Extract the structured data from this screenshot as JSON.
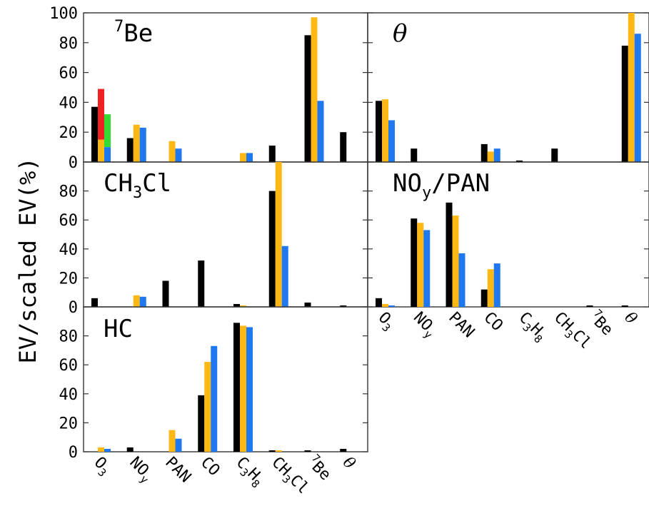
{
  "ylabel": "EV/scaled EV(%)",
  "colors": {
    "s1": "#000000",
    "s2": "#FDB813",
    "s3": "#1F78F0",
    "extra_red": "#EE2222",
    "extra_green": "#33DD33"
  },
  "categories": [
    {
      "text": "O",
      "sub": "3"
    },
    {
      "text": "NO",
      "sub": "y"
    },
    {
      "text": "PAN",
      "sub": ""
    },
    {
      "text": "CO",
      "sub": ""
    },
    {
      "text": "C",
      "sub": "3",
      "text2": "H",
      "sub2": "8"
    },
    {
      "text": "CH",
      "sub": "3",
      "text2": "Cl"
    },
    {
      "sup": "7",
      "text": "Be"
    },
    {
      "text": "θ",
      "serif": true
    }
  ],
  "chart_data": [
    {
      "type": "bar",
      "title": "Be",
      "title_sup": "7",
      "categories": [
        "O3",
        "NOy",
        "PAN",
        "CO",
        "C3H8",
        "CH3Cl",
        "7Be",
        "θ"
      ],
      "ylim": [
        0,
        100
      ],
      "yticks": [
        0,
        20,
        40,
        60,
        80,
        100
      ],
      "series": [
        {
          "values": [
            37,
            16,
            0,
            0,
            0,
            11,
            85,
            20
          ]
        },
        {
          "values": [
            15,
            25,
            14,
            0,
            6,
            0,
            97,
            0
          ]
        },
        {
          "values": [
            10,
            23,
            9,
            0,
            6,
            0,
            41,
            0
          ]
        }
      ],
      "extra": [
        {
          "category": "O3",
          "slot": 1,
          "color": "red",
          "bottom": 15,
          "top": 49
        },
        {
          "category": "O3",
          "slot": 2,
          "color": "green",
          "bottom": 10,
          "top": 32
        }
      ]
    },
    {
      "type": "bar",
      "title": "θ",
      "title_serif": true,
      "categories": [
        "O3",
        "NOy",
        "PAN",
        "CO",
        "C3H8",
        "CH3Cl",
        "7Be",
        "θ"
      ],
      "ylim": [
        0,
        100
      ],
      "yticks": [
        0,
        20,
        40,
        60,
        80,
        100
      ],
      "series": [
        {
          "values": [
            41,
            9,
            0,
            12,
            1,
            9,
            0,
            78
          ]
        },
        {
          "values": [
            42,
            0,
            0,
            7,
            0,
            0,
            0,
            100
          ]
        },
        {
          "values": [
            28,
            0,
            0,
            9,
            0,
            0,
            0,
            86
          ]
        }
      ]
    },
    {
      "type": "bar",
      "title": "CH",
      "title_sub": "3",
      "title_after": "Cl",
      "categories": [
        "O3",
        "NOy",
        "PAN",
        "CO",
        "C3H8",
        "CH3Cl",
        "7Be",
        "θ"
      ],
      "ylim": [
        0,
        100
      ],
      "yticks": [
        0,
        20,
        40,
        60,
        80
      ],
      "series": [
        {
          "values": [
            6,
            0,
            18,
            32,
            2,
            80,
            3,
            1
          ]
        },
        {
          "values": [
            0,
            8,
            0,
            0,
            1,
            100,
            0,
            0
          ]
        },
        {
          "values": [
            0,
            7,
            0,
            0,
            0,
            42,
            0,
            0
          ]
        }
      ]
    },
    {
      "type": "bar",
      "title": "NO",
      "title_sub": "y",
      "title_after": "/PAN",
      "categories": [
        "O3",
        "NOy",
        "PAN",
        "CO",
        "C3H8",
        "CH3Cl",
        "7Be",
        "θ"
      ],
      "ylim": [
        0,
        100
      ],
      "yticks": [
        0,
        20,
        40,
        60,
        80
      ],
      "series": [
        {
          "values": [
            6,
            61,
            72,
            12,
            0,
            0,
            1,
            1
          ]
        },
        {
          "values": [
            2,
            58,
            63,
            26,
            0,
            0,
            0,
            0
          ]
        },
        {
          "values": [
            1,
            53,
            37,
            30,
            0,
            0,
            0,
            0
          ]
        }
      ]
    },
    {
      "type": "bar",
      "title": "HC",
      "categories": [
        "O3",
        "NOy",
        "PAN",
        "CO",
        "C3H8",
        "CH3Cl",
        "7Be",
        "θ"
      ],
      "ylim": [
        0,
        100
      ],
      "yticks": [
        0,
        20,
        40,
        60,
        80
      ],
      "series": [
        {
          "values": [
            0,
            3,
            0,
            39,
            89,
            1,
            1,
            2
          ]
        },
        {
          "values": [
            3,
            0,
            15,
            62,
            87,
            1,
            0,
            0
          ]
        },
        {
          "values": [
            2,
            0,
            9,
            73,
            86,
            0,
            0,
            0
          ]
        }
      ]
    }
  ]
}
